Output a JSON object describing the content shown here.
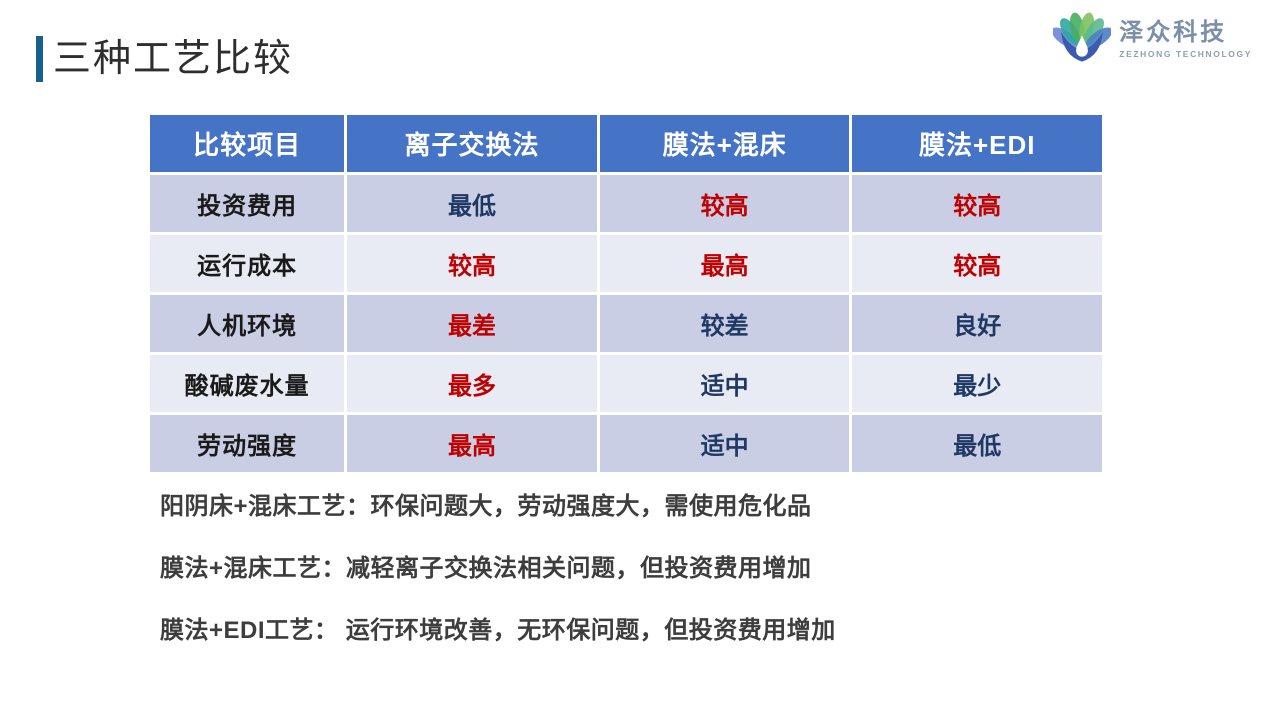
{
  "title": "三种工艺比较",
  "logo": {
    "name": "泽众科技",
    "subtitle": "ZEZHONG TECHNOLOGY"
  },
  "colors": {
    "accent_bar": "#17618E",
    "header_bg": "#4573C6",
    "header_text": "#FFFFFF",
    "row_band_dark": "#C9CEE4",
    "row_band_light": "#E9EBF4",
    "label_text": "#1A1A1A",
    "navy_value": "#1F3864",
    "red_value": "#C00000",
    "note_text": "#3D3D3D"
  },
  "table": {
    "headers": [
      "比较项目",
      "离子交换法",
      "膜法+混床",
      "膜法+EDI"
    ],
    "rows": [
      {
        "label": "投资费用",
        "cells": [
          {
            "text": "最低",
            "tone": "navy"
          },
          {
            "text": "较高",
            "tone": "red"
          },
          {
            "text": "较高",
            "tone": "red"
          }
        ]
      },
      {
        "label": "运行成本",
        "cells": [
          {
            "text": "较高",
            "tone": "red"
          },
          {
            "text": "最高",
            "tone": "red"
          },
          {
            "text": "较高",
            "tone": "red"
          }
        ]
      },
      {
        "label": "人机环境",
        "cells": [
          {
            "text": "最差",
            "tone": "red"
          },
          {
            "text": "较差",
            "tone": "navy"
          },
          {
            "text": "良好",
            "tone": "navy"
          }
        ]
      },
      {
        "label": "酸碱废水量",
        "cells": [
          {
            "text": "最多",
            "tone": "red"
          },
          {
            "text": "适中",
            "tone": "navy"
          },
          {
            "text": "最少",
            "tone": "navy"
          }
        ]
      },
      {
        "label": "劳动强度",
        "cells": [
          {
            "text": "最高",
            "tone": "red"
          },
          {
            "text": "适中",
            "tone": "navy"
          },
          {
            "text": "最低",
            "tone": "navy"
          }
        ]
      }
    ]
  },
  "notes": [
    "阳阴床+混床工艺：环保问题大，劳动强度大，需使用危化品",
    "膜法+混床工艺：减轻离子交换法相关问题，但投资费用增加",
    "膜法+EDI工艺： 运行环境改善，无环保问题，但投资费用增加"
  ]
}
